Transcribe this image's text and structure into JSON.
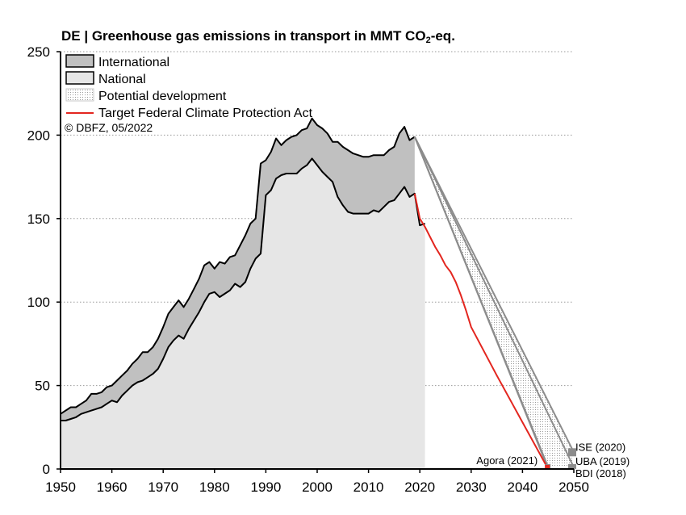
{
  "title": {
    "prefix": "DE | Greenhouse gas emissions in transport in MMT CO",
    "subscript": "2",
    "suffix": "-eq."
  },
  "copyright": "© DBFZ, 05/2022",
  "colors": {
    "international_fill": "#c0c0c0",
    "national_fill": "#e6e6e6",
    "outline": "#000000",
    "target_line": "#e3261f",
    "scenario_line": "#8c8c8c",
    "scenario_marker": "#8c8c8c",
    "grid": "#9a9a9a"
  },
  "chart_data": {
    "type": "area",
    "xlim": [
      1950,
      2050
    ],
    "ylim": [
      0,
      250
    ],
    "x_ticks": [
      "1950",
      "1960",
      "1970",
      "1980",
      "1990",
      "2000",
      "2010",
      "2020",
      "2030",
      "2040",
      "2050"
    ],
    "y_ticks": [
      "0",
      "50",
      "100",
      "150",
      "200",
      "250"
    ],
    "grid": "horizontal dotted",
    "legend_position": "top-left",
    "legend": [
      {
        "label": "International",
        "style": "fill-dark"
      },
      {
        "label": "National",
        "style": "fill-light"
      },
      {
        "label": "Potential development",
        "style": "dotted"
      },
      {
        "label": "Target Federal Climate Protection Act",
        "style": "red-line"
      }
    ],
    "total_years": [
      1950,
      1951,
      1952,
      1953,
      1954,
      1955,
      1956,
      1957,
      1958,
      1959,
      1960,
      1961,
      1962,
      1963,
      1964,
      1965,
      1966,
      1967,
      1968,
      1969,
      1970,
      1971,
      1972,
      1973,
      1974,
      1975,
      1976,
      1977,
      1978,
      1979,
      1980,
      1981,
      1982,
      1983,
      1984,
      1985,
      1986,
      1987,
      1988,
      1989,
      1990,
      1991,
      1992,
      1993,
      1994,
      1995,
      1996,
      1997,
      1998,
      1999,
      2000,
      2001,
      2002,
      2003,
      2004,
      2005,
      2006,
      2007,
      2008,
      2009,
      2010,
      2011,
      2012,
      2013,
      2014,
      2015,
      2016,
      2017,
      2018,
      2019
    ],
    "total_values": [
      33,
      35,
      37,
      37,
      39,
      41,
      45,
      45,
      46,
      49,
      50,
      53,
      56,
      59,
      63,
      66,
      70,
      70,
      73,
      78,
      85,
      93,
      97,
      101,
      97,
      102,
      108,
      114,
      122,
      124,
      120,
      124,
      123,
      127,
      128,
      134,
      140,
      147,
      150,
      183,
      185,
      190,
      198,
      194,
      197,
      199,
      200,
      203,
      204,
      210,
      206,
      204,
      201,
      196,
      196,
      193,
      191,
      189,
      188,
      187,
      187,
      188,
      188,
      188,
      191,
      193,
      201,
      205,
      197,
      199
    ],
    "national_years": [
      1950,
      1951,
      1952,
      1953,
      1954,
      1955,
      1956,
      1957,
      1958,
      1959,
      1960,
      1961,
      1962,
      1963,
      1964,
      1965,
      1966,
      1967,
      1968,
      1969,
      1970,
      1971,
      1972,
      1973,
      1974,
      1975,
      1976,
      1977,
      1978,
      1979,
      1980,
      1981,
      1982,
      1983,
      1984,
      1985,
      1986,
      1987,
      1988,
      1989,
      1990,
      1991,
      1992,
      1993,
      1994,
      1995,
      1996,
      1997,
      1998,
      1999,
      2000,
      2001,
      2002,
      2003,
      2004,
      2005,
      2006,
      2007,
      2008,
      2009,
      2010,
      2011,
      2012,
      2013,
      2014,
      2015,
      2016,
      2017,
      2018,
      2019,
      2020,
      2021
    ],
    "national_values": [
      29,
      29,
      30,
      31,
      33,
      34,
      35,
      36,
      37,
      39,
      41,
      40,
      44,
      47,
      50,
      52,
      53,
      55,
      57,
      60,
      66,
      73,
      77,
      80,
      78,
      84,
      89,
      94,
      100,
      105,
      106,
      103,
      105,
      107,
      111,
      109,
      112,
      120,
      126,
      129,
      164,
      167,
      174,
      176,
      177,
      177,
      177,
      180,
      182,
      186,
      182,
      178,
      175,
      172,
      163,
      158,
      154,
      153,
      153,
      153,
      153,
      155,
      154,
      157,
      160,
      161,
      165,
      169,
      163,
      165,
      146,
      147
    ],
    "target_line": {
      "x": [
        2019,
        2020,
        2021,
        2022,
        2023,
        2024,
        2025,
        2026,
        2027,
        2028,
        2029,
        2030,
        2035,
        2040,
        2045
      ],
      "y": [
        165,
        150,
        145,
        139,
        133,
        128,
        122,
        118,
        112,
        104,
        95,
        85,
        56,
        28,
        0
      ]
    },
    "scenarios": [
      {
        "label": "ISE (2020)",
        "start": [
          2019,
          199
        ],
        "end": [
          2050,
          10
        ]
      },
      {
        "label": "UBA (2019)",
        "start": [
          2019,
          199
        ],
        "end": [
          2050,
          1
        ]
      },
      {
        "label": "BDI (2018)",
        "start": [
          2019,
          199
        ],
        "end": [
          2045,
          1
        ]
      },
      {
        "label": "Agora (2021)",
        "start": [
          2019,
          199
        ],
        "end": [
          2045,
          0
        ]
      }
    ]
  }
}
